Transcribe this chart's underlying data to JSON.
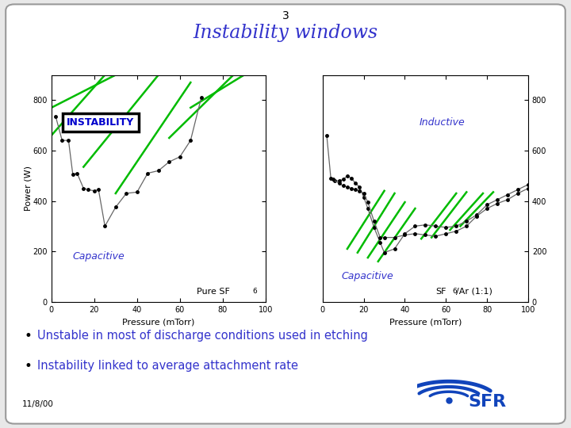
{
  "slide_number": "3",
  "title": "Instability windows",
  "title_color": "#3333cc",
  "bg_color": "#e8e8e8",
  "card_bg": "#ffffff",
  "border_color": "#999999",
  "left_plot": {
    "xlabel": "Pressure (mTorr)",
    "ylabel": "Power (W)",
    "label_text": "Pure SF",
    "label_sub": "6",
    "xlim": [
      0,
      100
    ],
    "ylim": [
      0,
      900
    ],
    "xticks": [
      0,
      20,
      40,
      60,
      80,
      100
    ],
    "yticks": [
      0,
      200,
      400,
      600,
      800
    ],
    "curve_x": [
      2,
      5,
      8,
      10,
      12,
      15,
      17,
      20,
      22,
      25,
      30,
      35,
      40,
      45,
      50,
      55,
      60,
      65,
      70
    ],
    "curve_y": [
      735,
      640,
      640,
      505,
      510,
      450,
      445,
      440,
      445,
      300,
      375,
      430,
      435,
      510,
      520,
      555,
      575,
      640,
      810
    ],
    "instability_label": "INSTABILITY",
    "capacitive_label": "Capacitive",
    "green_lines": [
      [
        [
          0,
          770
        ],
        [
          30,
          900
        ]
      ],
      [
        [
          0,
          660
        ],
        [
          25,
          900
        ]
      ],
      [
        [
          15,
          535
        ],
        [
          50,
          900
        ]
      ],
      [
        [
          30,
          430
        ],
        [
          65,
          870
        ]
      ],
      [
        [
          55,
          650
        ],
        [
          85,
          900
        ]
      ],
      [
        [
          65,
          770
        ],
        [
          90,
          900
        ]
      ]
    ]
  },
  "right_plot": {
    "xlabel": "Pressure (mTorr)",
    "label_text": "SF",
    "label_sub": "6",
    "label_rest": "/Ar (1:1)",
    "xlim": [
      0,
      100
    ],
    "ylim": [
      0,
      900
    ],
    "xticks": [
      0,
      20,
      40,
      60,
      80,
      100
    ],
    "yticks": [
      0,
      200,
      400,
      600,
      800
    ],
    "curve1_x": [
      2,
      4,
      6,
      8,
      10,
      12,
      14,
      16,
      18,
      20,
      22,
      25,
      28,
      30,
      35,
      40,
      45,
      50,
      55,
      60,
      65,
      70,
      75,
      80,
      85,
      90,
      95,
      100
    ],
    "curve1_y": [
      660,
      490,
      480,
      480,
      485,
      500,
      490,
      470,
      455,
      415,
      370,
      295,
      235,
      195,
      210,
      270,
      300,
      305,
      300,
      295,
      300,
      320,
      345,
      385,
      405,
      425,
      445,
      465
    ],
    "curve2_x": [
      5,
      8,
      10,
      12,
      14,
      16,
      18,
      20,
      22,
      25,
      28,
      30,
      35,
      40,
      45,
      50,
      55,
      60,
      65,
      70,
      75,
      80,
      85,
      90,
      95,
      100
    ],
    "curve2_y": [
      485,
      470,
      460,
      455,
      450,
      445,
      440,
      430,
      395,
      320,
      255,
      255,
      255,
      265,
      270,
      265,
      260,
      270,
      280,
      300,
      340,
      370,
      390,
      405,
      430,
      450
    ],
    "inductive_label": "Inductive",
    "capacitive_label": "Capacitive",
    "green_lines_r1": [
      [
        [
          12,
          210
        ],
        [
          30,
          440
        ]
      ],
      [
        [
          17,
          195
        ],
        [
          35,
          430
        ]
      ],
      [
        [
          22,
          175
        ],
        [
          40,
          395
        ]
      ],
      [
        [
          27,
          160
        ],
        [
          45,
          370
        ]
      ]
    ],
    "green_lines_r2": [
      [
        [
          48,
          250
        ],
        [
          65,
          430
        ]
      ],
      [
        [
          53,
          255
        ],
        [
          70,
          435
        ]
      ],
      [
        [
          62,
          285
        ],
        [
          78,
          430
        ]
      ],
      [
        [
          67,
          300
        ],
        [
          83,
          435
        ]
      ]
    ]
  },
  "bullets": [
    "Unstable in most of discharge conditions used in etching",
    "Instability linked to average attachment rate"
  ],
  "bullet_color": "#3333cc",
  "date_text": "11/8/00",
  "green_color": "#00bb00",
  "blue_label_color": "#3333cc",
  "axis_label_color": "#000000"
}
